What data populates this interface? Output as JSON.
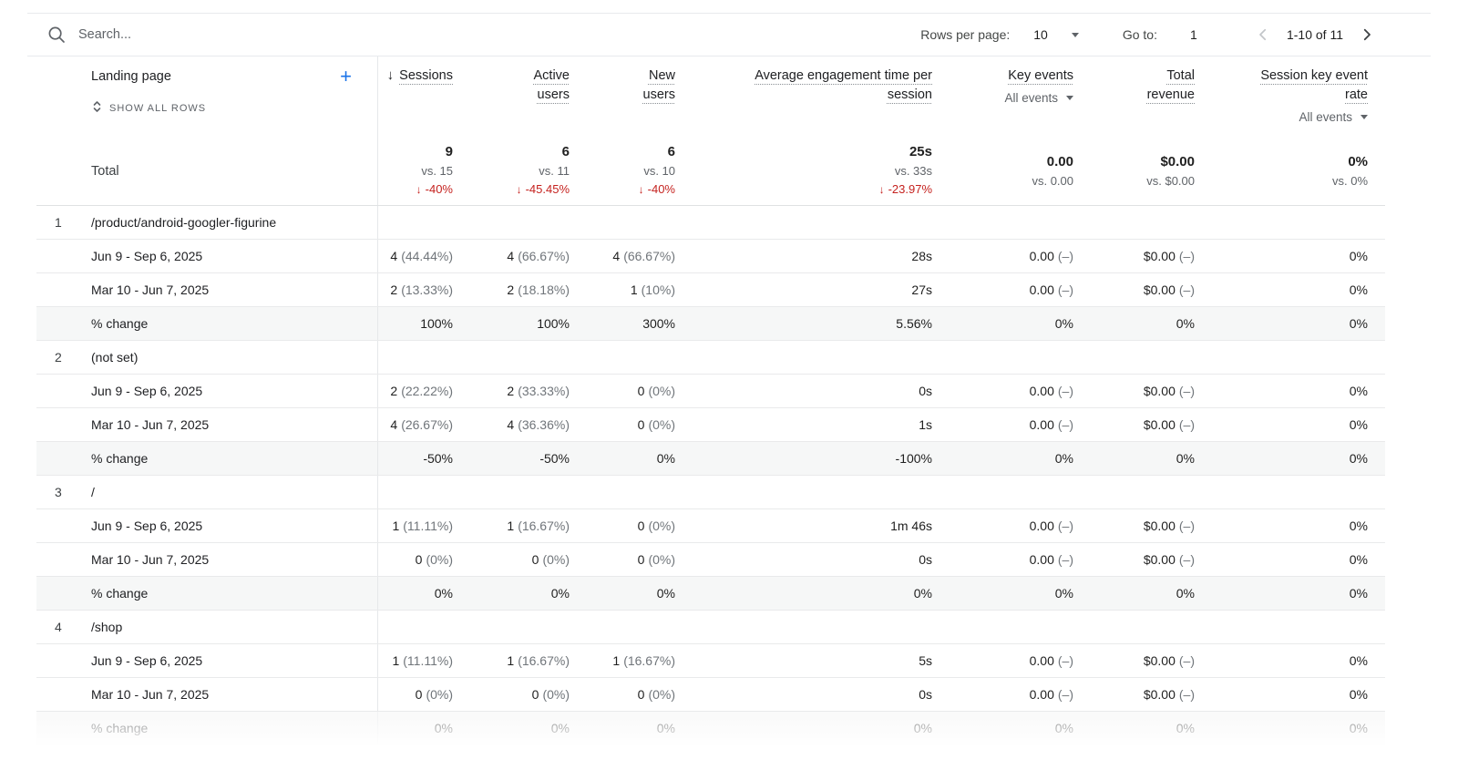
{
  "toolbar": {
    "search_placeholder": "Search...",
    "rows_per_page_label": "Rows per page:",
    "rows_per_page_value": "10",
    "goto_label": "Go to:",
    "goto_value": "1",
    "range_label": "1-10 of 11"
  },
  "header": {
    "dimension_label": "Landing page",
    "show_all_rows_label": "SHOW ALL ROWS",
    "columns": [
      {
        "id": "sessions",
        "lines": [
          "Sessions"
        ],
        "sorted": true
      },
      {
        "id": "active-users",
        "lines": [
          "Active",
          "users"
        ]
      },
      {
        "id": "new-users",
        "lines": [
          "New",
          "users"
        ]
      },
      {
        "id": "avg-engagement-time",
        "lines": [
          "Average engagement time per",
          "session"
        ]
      },
      {
        "id": "key-events",
        "lines": [
          "Key events"
        ],
        "dropdown": "All events"
      },
      {
        "id": "total-revenue",
        "lines": [
          "Total",
          "revenue"
        ]
      },
      {
        "id": "session-key-event-rate",
        "lines": [
          "Session key event",
          "rate"
        ],
        "dropdown": "All events"
      }
    ]
  },
  "totals": {
    "label": "Total",
    "cells": [
      {
        "value": "9",
        "vs": "vs. 15",
        "change": "-40%"
      },
      {
        "value": "6",
        "vs": "vs. 11",
        "change": "-45.45%"
      },
      {
        "value": "6",
        "vs": "vs. 10",
        "change": "-40%"
      },
      {
        "value": "25s",
        "vs": "vs. 33s",
        "change": "-23.97%"
      },
      {
        "value": "0.00",
        "vs": "vs. 0.00"
      },
      {
        "value": "$0.00",
        "vs": "vs. $0.00"
      },
      {
        "value": "0%",
        "vs": "vs. 0%"
      }
    ]
  },
  "rows": [
    {
      "num": "1",
      "page": "/product/android-googler-figurine",
      "subrows": [
        {
          "label": "Jun 9 - Sep 6, 2025",
          "change": false,
          "cells": [
            [
              "4",
              "(44.44%)"
            ],
            [
              "4",
              "(66.67%)"
            ],
            [
              "4",
              "(66.67%)"
            ],
            [
              "28s"
            ],
            [
              "0.00",
              "(–)"
            ],
            [
              "$0.00",
              "(–)"
            ],
            [
              "0%"
            ]
          ]
        },
        {
          "label": "Mar 10 - Jun 7, 2025",
          "change": false,
          "cells": [
            [
              "2",
              "(13.33%)"
            ],
            [
              "2",
              "(18.18%)"
            ],
            [
              "1",
              "(10%)"
            ],
            [
              "27s"
            ],
            [
              "0.00",
              "(–)"
            ],
            [
              "$0.00",
              "(–)"
            ],
            [
              "0%"
            ]
          ]
        },
        {
          "label": "% change",
          "change": true,
          "cells": [
            [
              "100%"
            ],
            [
              "100%"
            ],
            [
              "300%"
            ],
            [
              "5.56%"
            ],
            [
              "0%"
            ],
            [
              "0%"
            ],
            [
              "0%"
            ]
          ]
        }
      ]
    },
    {
      "num": "2",
      "page": "(not set)",
      "subrows": [
        {
          "label": "Jun 9 - Sep 6, 2025",
          "change": false,
          "cells": [
            [
              "2",
              "(22.22%)"
            ],
            [
              "2",
              "(33.33%)"
            ],
            [
              "0",
              "(0%)"
            ],
            [
              "0s"
            ],
            [
              "0.00",
              "(–)"
            ],
            [
              "$0.00",
              "(–)"
            ],
            [
              "0%"
            ]
          ]
        },
        {
          "label": "Mar 10 - Jun 7, 2025",
          "change": false,
          "cells": [
            [
              "4",
              "(26.67%)"
            ],
            [
              "4",
              "(36.36%)"
            ],
            [
              "0",
              "(0%)"
            ],
            [
              "1s"
            ],
            [
              "0.00",
              "(–)"
            ],
            [
              "$0.00",
              "(–)"
            ],
            [
              "0%"
            ]
          ]
        },
        {
          "label": "% change",
          "change": true,
          "cells": [
            [
              "-50%"
            ],
            [
              "-50%"
            ],
            [
              "0%"
            ],
            [
              "-100%"
            ],
            [
              "0%"
            ],
            [
              "0%"
            ],
            [
              "0%"
            ]
          ]
        }
      ]
    },
    {
      "num": "3",
      "page": "/",
      "subrows": [
        {
          "label": "Jun 9 - Sep 6, 2025",
          "change": false,
          "cells": [
            [
              "1",
              "(11.11%)"
            ],
            [
              "1",
              "(16.67%)"
            ],
            [
              "0",
              "(0%)"
            ],
            [
              "1m 46s"
            ],
            [
              "0.00",
              "(–)"
            ],
            [
              "$0.00",
              "(–)"
            ],
            [
              "0%"
            ]
          ]
        },
        {
          "label": "Mar 10 - Jun 7, 2025",
          "change": false,
          "cells": [
            [
              "0",
              "(0%)"
            ],
            [
              "0",
              "(0%)"
            ],
            [
              "0",
              "(0%)"
            ],
            [
              "0s"
            ],
            [
              "0.00",
              "(–)"
            ],
            [
              "$0.00",
              "(–)"
            ],
            [
              "0%"
            ]
          ]
        },
        {
          "label": "% change",
          "change": true,
          "cells": [
            [
              "0%"
            ],
            [
              "0%"
            ],
            [
              "0%"
            ],
            [
              "0%"
            ],
            [
              "0%"
            ],
            [
              "0%"
            ],
            [
              "0%"
            ]
          ]
        }
      ]
    },
    {
      "num": "4",
      "page": "/shop",
      "subrows": [
        {
          "label": "Jun 9 - Sep 6, 2025",
          "change": false,
          "cells": [
            [
              "1",
              "(11.11%)"
            ],
            [
              "1",
              "(16.67%)"
            ],
            [
              "1",
              "(16.67%)"
            ],
            [
              "5s"
            ],
            [
              "0.00",
              "(–)"
            ],
            [
              "$0.00",
              "(–)"
            ],
            [
              "0%"
            ]
          ]
        },
        {
          "label": "Mar 10 - Jun 7, 2025",
          "change": false,
          "cells": [
            [
              "0",
              "(0%)"
            ],
            [
              "0",
              "(0%)"
            ],
            [
              "0",
              "(0%)"
            ],
            [
              "0s"
            ],
            [
              "0.00",
              "(–)"
            ],
            [
              "$0.00",
              "(–)"
            ],
            [
              "0%"
            ]
          ]
        },
        {
          "label": "% change",
          "change": true,
          "cells": [
            [
              "0%"
            ],
            [
              "0%"
            ],
            [
              "0%"
            ],
            [
              "0%"
            ],
            [
              "0%"
            ],
            [
              "0%"
            ],
            [
              "0%"
            ]
          ]
        }
      ]
    }
  ],
  "colors": {
    "accent": "#1a73e8",
    "negative": "#c5221f",
    "text": "#202124",
    "secondary_text": "#5f6368"
  }
}
